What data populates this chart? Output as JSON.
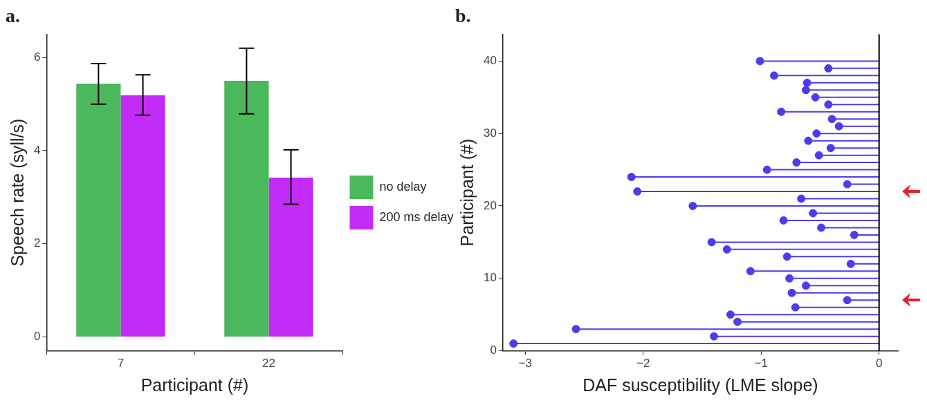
{
  "chart_data": [
    {
      "type": "bar",
      "title": "a.",
      "xlabel": "Participant (#)",
      "ylabel": "Speech rate (syll/s)",
      "categories": [
        "7",
        "22"
      ],
      "series": [
        {
          "name": "no delay",
          "color": "#4cb85c",
          "values": [
            5.44,
            5.5
          ],
          "errors": [
            [
              5.0,
              5.87
            ],
            [
              4.79,
              6.2
            ]
          ]
        },
        {
          "name": "200 ms delay",
          "color": "#c32cf7",
          "values": [
            5.19,
            3.42
          ],
          "errors": [
            [
              4.76,
              5.63
            ],
            [
              2.85,
              4.02
            ]
          ]
        }
      ],
      "ylim": [
        -0.3,
        6.5
      ],
      "yticks": [
        0,
        2,
        4,
        6
      ],
      "grid": false,
      "legend": "right"
    },
    {
      "type": "lollipop",
      "title": "b.",
      "xlabel": "DAF susceptibility (LME slope)",
      "ylabel": "Participant (#)",
      "orientation": "horizontal",
      "x": [
        1,
        2,
        3,
        4,
        5,
        6,
        7,
        8,
        9,
        10,
        11,
        12,
        13,
        14,
        15,
        16,
        17,
        18,
        19,
        20,
        21,
        22,
        23,
        24,
        25,
        26,
        27,
        28,
        29,
        30,
        31,
        32,
        33,
        34,
        35,
        36,
        37,
        38,
        39,
        40
      ],
      "series": [
        {
          "color": "#4b3cf0",
          "values": [
            -3.1,
            -1.4,
            -2.57,
            -1.2,
            -1.26,
            -0.71,
            -0.27,
            -0.74,
            -0.62,
            -0.76,
            -1.09,
            -0.24,
            -0.78,
            -1.29,
            -1.42,
            -0.21,
            -0.49,
            -0.81,
            -0.56,
            -1.58,
            -0.66,
            -2.05,
            -0.27,
            -2.1,
            -0.95,
            -0.7,
            -0.51,
            -0.41,
            -0.6,
            -0.53,
            -0.34,
            -0.4,
            -0.83,
            -0.43,
            -0.54,
            -0.62,
            -0.61,
            -0.89,
            -0.43,
            -1.01
          ]
        }
      ],
      "xlim": [
        -3.19,
        0.16
      ],
      "xticks": [
        -3,
        -2,
        -1,
        0
      ],
      "ylim": [
        0,
        43.7
      ],
      "yticks": [
        0,
        10,
        20,
        30,
        40
      ],
      "ref_lines": [
        {
          "axis": "x",
          "value": 0,
          "color": "#000000"
        }
      ],
      "marker": "circle",
      "grid": false,
      "legend": false
    }
  ]
}
